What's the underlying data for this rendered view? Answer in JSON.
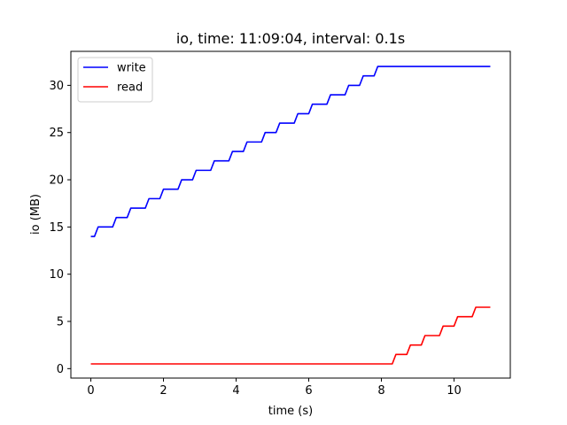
{
  "chart_data": {
    "type": "line",
    "title": "io, time: 11:09:04, interval: 0.1s",
    "xlabel": "time (s)",
    "ylabel": "io (MB)",
    "xlim": [
      -0.55,
      11.55
    ],
    "ylim": [
      -1.0,
      33.6
    ],
    "xticks": [
      0,
      2,
      4,
      6,
      8,
      10
    ],
    "yticks": [
      0,
      5,
      10,
      15,
      20,
      25,
      30
    ],
    "grid": false,
    "legend": "top-left",
    "series": [
      {
        "name": "write",
        "color": "#0000ff",
        "points": [
          [
            0.0,
            14
          ],
          [
            0.1,
            14
          ],
          [
            0.2,
            15
          ],
          [
            0.6,
            15
          ],
          [
            0.7,
            16
          ],
          [
            1.0,
            16
          ],
          [
            1.1,
            17
          ],
          [
            1.5,
            17
          ],
          [
            1.6,
            18
          ],
          [
            1.9,
            18
          ],
          [
            2.0,
            19
          ],
          [
            2.4,
            19
          ],
          [
            2.5,
            20
          ],
          [
            2.8,
            20
          ],
          [
            2.9,
            21
          ],
          [
            3.3,
            21
          ],
          [
            3.4,
            22
          ],
          [
            3.8,
            22
          ],
          [
            3.9,
            23
          ],
          [
            4.2,
            23
          ],
          [
            4.3,
            24
          ],
          [
            4.7,
            24
          ],
          [
            4.8,
            25
          ],
          [
            5.1,
            25
          ],
          [
            5.2,
            26
          ],
          [
            5.6,
            26
          ],
          [
            5.7,
            27
          ],
          [
            6.0,
            27
          ],
          [
            6.1,
            28
          ],
          [
            6.5,
            28
          ],
          [
            6.6,
            29
          ],
          [
            7.0,
            29
          ],
          [
            7.1,
            30
          ],
          [
            7.4,
            30
          ],
          [
            7.5,
            31
          ],
          [
            7.8,
            31
          ],
          [
            7.9,
            32
          ],
          [
            11.0,
            32
          ]
        ]
      },
      {
        "name": "read",
        "color": "#ff0000",
        "points": [
          [
            0.0,
            0.5
          ],
          [
            8.3,
            0.5
          ],
          [
            8.4,
            1.5
          ],
          [
            8.7,
            1.5
          ],
          [
            8.8,
            2.5
          ],
          [
            9.1,
            2.5
          ],
          [
            9.2,
            3.5
          ],
          [
            9.6,
            3.5
          ],
          [
            9.7,
            4.5
          ],
          [
            10.0,
            4.5
          ],
          [
            10.1,
            5.5
          ],
          [
            10.5,
            5.5
          ],
          [
            10.6,
            6.5
          ],
          [
            11.0,
            6.5
          ]
        ]
      }
    ]
  }
}
